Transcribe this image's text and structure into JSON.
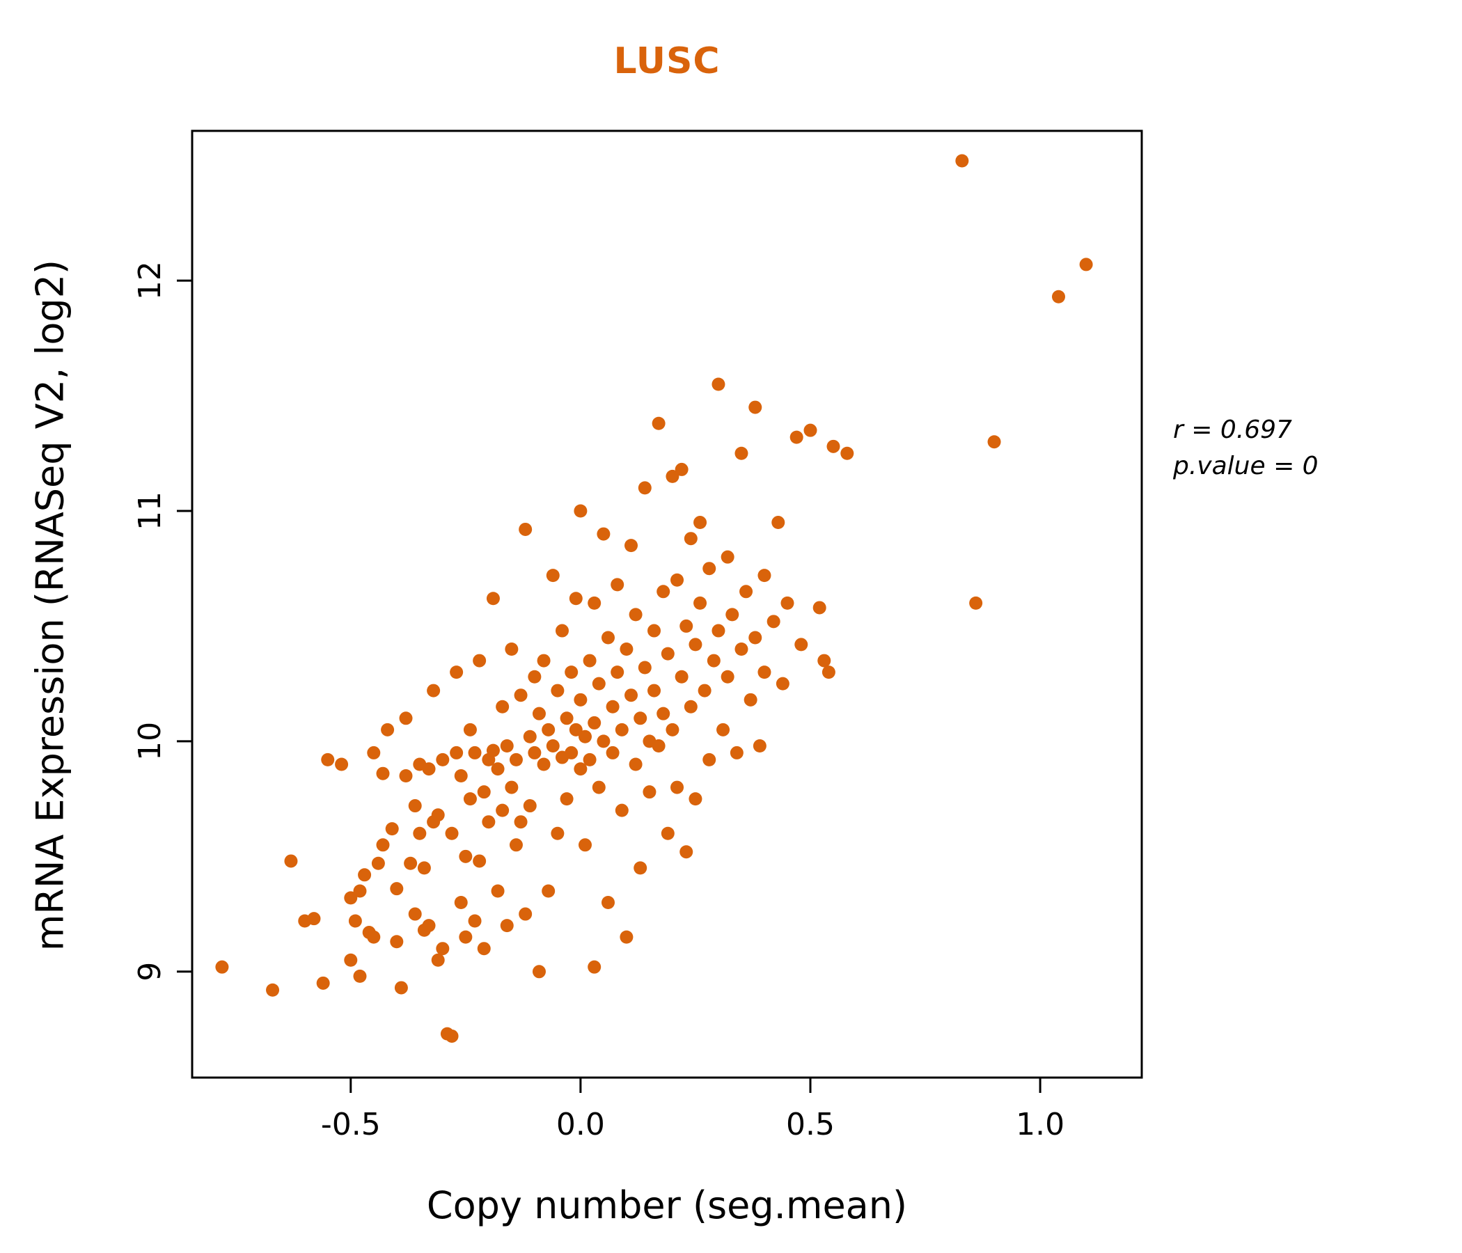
{
  "title": "LUSC",
  "colors": {
    "accent": "#D9630B",
    "axis": "#000000"
  },
  "annotation": {
    "line1": "r = 0.697",
    "line2": "p.value = 0"
  },
  "chart_data": {
    "type": "scatter",
    "title": "LUSC",
    "xlabel": "Copy number (seg.mean)",
    "ylabel": "mRNA Expression (RNASeq V2, log2)",
    "xlim": [
      -0.845,
      1.221
    ],
    "ylim": [
      8.54,
      12.65
    ],
    "x_ticks": [
      -0.5,
      0.0,
      0.5,
      1.0
    ],
    "x_tick_labels": [
      "-0.5",
      "0.0",
      "0.5",
      "1.0"
    ],
    "y_ticks": [
      9,
      10,
      11,
      12
    ],
    "y_tick_labels": [
      "9",
      "10",
      "11",
      "12"
    ],
    "grid": false,
    "legend": "none",
    "point_color": "#D9630B",
    "points": [
      [
        -0.78,
        9.02
      ],
      [
        -0.67,
        8.92
      ],
      [
        -0.63,
        9.48
      ],
      [
        -0.6,
        9.22
      ],
      [
        -0.58,
        9.23
      ],
      [
        -0.56,
        8.95
      ],
      [
        -0.55,
        9.92
      ],
      [
        -0.52,
        9.9
      ],
      [
        -0.5,
        9.32
      ],
      [
        -0.5,
        9.05
      ],
      [
        -0.49,
        9.22
      ],
      [
        -0.48,
        9.35
      ],
      [
        -0.48,
        8.98
      ],
      [
        -0.47,
        9.42
      ],
      [
        -0.46,
        9.17
      ],
      [
        -0.45,
        9.15
      ],
      [
        -0.45,
        9.95
      ],
      [
        -0.44,
        9.47
      ],
      [
        -0.43,
        9.55
      ],
      [
        -0.43,
        9.86
      ],
      [
        -0.42,
        10.05
      ],
      [
        -0.41,
        9.62
      ],
      [
        -0.4,
        9.13
      ],
      [
        -0.4,
        9.36
      ],
      [
        -0.39,
        8.93
      ],
      [
        -0.38,
        9.85
      ],
      [
        -0.38,
        10.1
      ],
      [
        -0.37,
        9.47
      ],
      [
        -0.36,
        9.72
      ],
      [
        -0.36,
        9.25
      ],
      [
        -0.35,
        9.9
      ],
      [
        -0.35,
        9.6
      ],
      [
        -0.34,
        9.45
      ],
      [
        -0.34,
        9.18
      ],
      [
        -0.33,
        9.88
      ],
      [
        -0.33,
        9.2
      ],
      [
        -0.32,
        10.22
      ],
      [
        -0.32,
        9.65
      ],
      [
        -0.31,
        9.05
      ],
      [
        -0.31,
        9.68
      ],
      [
        -0.3,
        9.1
      ],
      [
        -0.3,
        9.92
      ],
      [
        -0.29,
        8.73
      ],
      [
        -0.28,
        8.72
      ],
      [
        -0.28,
        9.6
      ],
      [
        -0.27,
        9.95
      ],
      [
        -0.27,
        10.3
      ],
      [
        -0.26,
        9.3
      ],
      [
        -0.26,
        9.85
      ],
      [
        -0.25,
        9.15
      ],
      [
        -0.25,
        9.5
      ],
      [
        -0.24,
        10.05
      ],
      [
        -0.24,
        9.75
      ],
      [
        -0.23,
        9.95
      ],
      [
        -0.23,
        9.22
      ],
      [
        -0.22,
        9.48
      ],
      [
        -0.22,
        10.35
      ],
      [
        -0.21,
        9.78
      ],
      [
        -0.21,
        9.1
      ],
      [
        -0.2,
        9.92
      ],
      [
        -0.2,
        9.65
      ],
      [
        -0.19,
        10.62
      ],
      [
        -0.19,
        9.96
      ],
      [
        -0.18,
        9.88
      ],
      [
        -0.18,
        9.35
      ],
      [
        -0.17,
        9.7
      ],
      [
        -0.17,
        10.15
      ],
      [
        -0.16,
        9.2
      ],
      [
        -0.16,
        9.98
      ],
      [
        -0.15,
        9.8
      ],
      [
        -0.15,
        10.4
      ],
      [
        -0.14,
        9.55
      ],
      [
        -0.14,
        9.92
      ],
      [
        -0.13,
        9.65
      ],
      [
        -0.13,
        10.2
      ],
      [
        -0.12,
        10.92
      ],
      [
        -0.12,
        9.25
      ],
      [
        -0.11,
        10.02
      ],
      [
        -0.11,
        9.72
      ],
      [
        -0.1,
        9.95
      ],
      [
        -0.1,
        10.28
      ],
      [
        -0.09,
        9.0
      ],
      [
        -0.09,
        10.12
      ],
      [
        -0.08,
        9.9
      ],
      [
        -0.08,
        10.35
      ],
      [
        -0.07,
        9.35
      ],
      [
        -0.07,
        10.05
      ],
      [
        -0.06,
        10.72
      ],
      [
        -0.06,
        9.98
      ],
      [
        -0.05,
        10.22
      ],
      [
        -0.05,
        9.6
      ],
      [
        -0.04,
        10.48
      ],
      [
        -0.04,
        9.93
      ],
      [
        -0.03,
        10.1
      ],
      [
        -0.03,
        9.75
      ],
      [
        -0.02,
        10.3
      ],
      [
        -0.02,
        9.95
      ],
      [
        -0.01,
        10.62
      ],
      [
        -0.01,
        10.05
      ],
      [
        0.0,
        9.88
      ],
      [
        0.0,
        10.18
      ],
      [
        0.0,
        11.0
      ],
      [
        0.01,
        10.02
      ],
      [
        0.01,
        9.55
      ],
      [
        0.02,
        10.35
      ],
      [
        0.02,
        9.92
      ],
      [
        0.03,
        10.6
      ],
      [
        0.03,
        10.08
      ],
      [
        0.03,
        9.02
      ],
      [
        0.04,
        9.8
      ],
      [
        0.04,
        10.25
      ],
      [
        0.05,
        10.9
      ],
      [
        0.05,
        10.0
      ],
      [
        0.06,
        10.45
      ],
      [
        0.06,
        9.3
      ],
      [
        0.07,
        10.15
      ],
      [
        0.07,
        9.95
      ],
      [
        0.08,
        10.68
      ],
      [
        0.08,
        10.3
      ],
      [
        0.09,
        9.7
      ],
      [
        0.09,
        10.05
      ],
      [
        0.1,
        10.4
      ],
      [
        0.1,
        9.15
      ],
      [
        0.11,
        10.85
      ],
      [
        0.11,
        10.2
      ],
      [
        0.12,
        9.9
      ],
      [
        0.12,
        10.55
      ],
      [
        0.13,
        10.1
      ],
      [
        0.13,
        9.45
      ],
      [
        0.14,
        10.32
      ],
      [
        0.14,
        11.1
      ],
      [
        0.15,
        10.0
      ],
      [
        0.15,
        9.78
      ],
      [
        0.16,
        10.48
      ],
      [
        0.16,
        10.22
      ],
      [
        0.17,
        11.38
      ],
      [
        0.17,
        9.98
      ],
      [
        0.18,
        10.65
      ],
      [
        0.18,
        10.12
      ],
      [
        0.19,
        9.6
      ],
      [
        0.19,
        10.38
      ],
      [
        0.2,
        11.15
      ],
      [
        0.2,
        10.05
      ],
      [
        0.21,
        10.7
      ],
      [
        0.21,
        9.8
      ],
      [
        0.22,
        10.28
      ],
      [
        0.22,
        11.18
      ],
      [
        0.23,
        10.5
      ],
      [
        0.23,
        9.52
      ],
      [
        0.24,
        10.88
      ],
      [
        0.24,
        10.15
      ],
      [
        0.25,
        10.42
      ],
      [
        0.25,
        9.75
      ],
      [
        0.26,
        10.6
      ],
      [
        0.26,
        10.95
      ],
      [
        0.27,
        10.22
      ],
      [
        0.28,
        10.75
      ],
      [
        0.28,
        9.92
      ],
      [
        0.29,
        10.35
      ],
      [
        0.3,
        11.55
      ],
      [
        0.3,
        10.48
      ],
      [
        0.31,
        10.05
      ],
      [
        0.32,
        10.8
      ],
      [
        0.32,
        10.28
      ],
      [
        0.33,
        10.55
      ],
      [
        0.34,
        9.95
      ],
      [
        0.35,
        10.4
      ],
      [
        0.35,
        11.25
      ],
      [
        0.36,
        10.65
      ],
      [
        0.37,
        10.18
      ],
      [
        0.38,
        11.45
      ],
      [
        0.38,
        10.45
      ],
      [
        0.39,
        9.98
      ],
      [
        0.4,
        10.72
      ],
      [
        0.4,
        10.3
      ],
      [
        0.42,
        10.52
      ],
      [
        0.43,
        10.95
      ],
      [
        0.44,
        10.25
      ],
      [
        0.45,
        10.6
      ],
      [
        0.47,
        11.32
      ],
      [
        0.48,
        10.42
      ],
      [
        0.5,
        11.35
      ],
      [
        0.52,
        10.58
      ],
      [
        0.53,
        10.35
      ],
      [
        0.54,
        10.3
      ],
      [
        0.55,
        11.28
      ],
      [
        0.58,
        11.25
      ],
      [
        0.83,
        12.52
      ],
      [
        0.86,
        10.6
      ],
      [
        0.9,
        11.3
      ],
      [
        1.04,
        11.93
      ],
      [
        1.1,
        12.07
      ]
    ],
    "annotations": [
      "r = 0.697",
      "p.value = 0"
    ]
  }
}
